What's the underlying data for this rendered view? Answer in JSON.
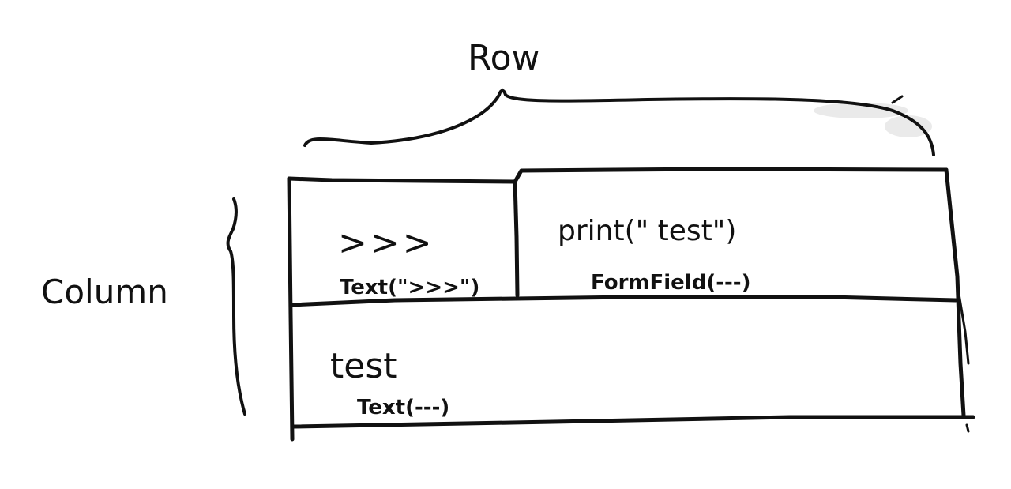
{
  "diagram": {
    "row_label": "Row",
    "column_label": "Column",
    "cells": {
      "top_left": {
        "main": ">>>",
        "widget": "Text(\">>>\")"
      },
      "top_right": {
        "main": "print(\" test\")",
        "widget": "FormField(---)"
      },
      "bottom": {
        "main": "test",
        "widget": "Text(---)"
      }
    }
  }
}
